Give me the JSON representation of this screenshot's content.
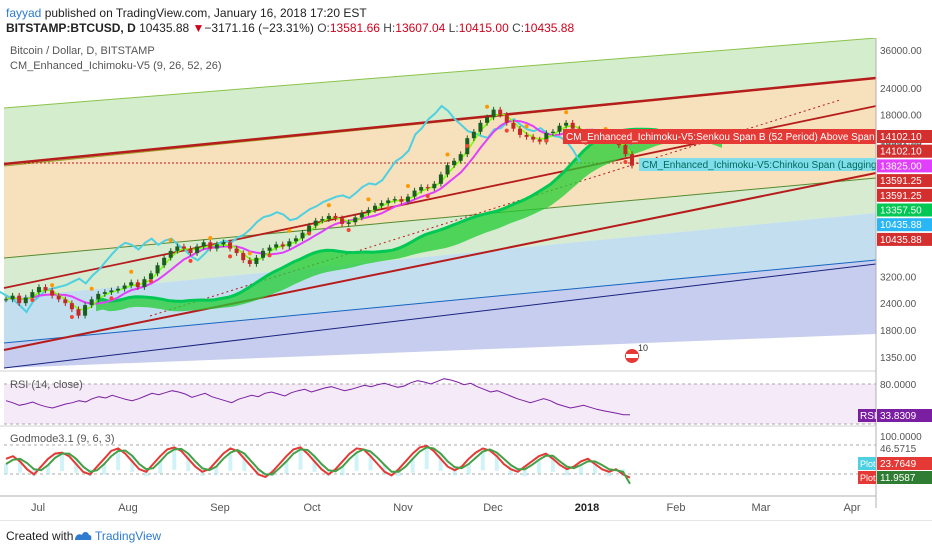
{
  "header": {
    "author": "fayyad",
    "published_text": "published on TradingView.com, January 16, 2018 17:20 EST",
    "symbol": "BITSTAMP:BTCUSD, D",
    "last": "10435.88",
    "change_arrow": "▼",
    "change": "−3171.16 (−23.31%)",
    "open_label": "O:",
    "open": "13581.66",
    "high_label": "H:",
    "high": "13607.04",
    "low_label": "L:",
    "low": "10415.00",
    "close_label": "C:",
    "close": "10435.88"
  },
  "footer": {
    "created_with": "Created with",
    "brand": "TradingView"
  },
  "colors": {
    "bull": "#26a69a",
    "bear": "#ef5350",
    "accent": "#2e7bcf",
    "rsi": "#7b1fa2",
    "cloud": "#22cc33",
    "trend": "#b71c1c"
  },
  "chart_data": [
    {
      "type": "candlestick",
      "title": "Bitcoin / Dollar, D, BITSTAMP",
      "indicator": "CM_Enhanced_Ichimoku-V5 (9, 26, 52, 26)",
      "y_scale": "log",
      "ylim": [
        1200,
        40000
      ],
      "y_ticks": [
        "36000.00",
        "24000.00",
        "18000.00",
        "14102.10",
        "13825.00",
        "13591.25",
        "13357.50",
        "10435.88",
        "3200.00",
        "2400.00",
        "1800.00",
        "1350.00"
      ],
      "x_ticks": [
        "Jul",
        "Aug",
        "Sep",
        "Oct",
        "Nov",
        "Dec",
        "2018",
        "Feb",
        "Mar",
        "Apr"
      ],
      "price_labels": [
        {
          "text": "14102.10",
          "value": 14102.1,
          "color": "#d32f2f"
        },
        {
          "text": "14102.10",
          "value": 14102.1,
          "color": "#d32f2f"
        },
        {
          "text": "13825.00",
          "value": 13825,
          "color": "#e040fb"
        },
        {
          "text": "13591.25",
          "value": 13591.25,
          "color": "#d32f2f"
        },
        {
          "text": "13591.25",
          "value": 13591.25,
          "color": "#d32f2f"
        },
        {
          "text": "13357.50",
          "value": 13357.5,
          "color": "#00c853"
        },
        {
          "text": "10435.88",
          "value": 10435.88,
          "color": "#29b6f6"
        },
        {
          "text": "10435.88",
          "value": 10435.88,
          "color": "#d32f2f"
        }
      ],
      "annotations": [
        {
          "text": "CM_Enhanced_Ichimoku-V5:Senkou Span B (52 Period) Above Span A Cloud",
          "color": "#d32f2f"
        },
        {
          "text": "CM_Enhanced_Ichimoku-V5:Chinkou Span (Lagging Line)",
          "color": "#4dd0e1"
        }
      ],
      "series": [
        {
          "values": [
            2500,
            2600,
            2400,
            2550,
            2700,
            2850,
            2750,
            2600,
            2500,
            2400,
            2250,
            2100,
            2350,
            2500,
            2650,
            2700,
            2750,
            2800,
            2900,
            3000,
            2850,
            3100,
            3300,
            3600,
            3900,
            4200,
            4400,
            4300,
            4100,
            4400,
            4600,
            4300,
            4500,
            4600,
            4300,
            4100,
            3800,
            3650,
            3900,
            4200,
            4350,
            4500,
            4400,
            4650,
            4800,
            5100,
            5500,
            5800,
            5900,
            6100,
            5950,
            5600,
            5700,
            6000,
            6300,
            6500,
            6800,
            7000,
            7200,
            7300,
            7100,
            7500,
            8000,
            8300,
            8200,
            8600,
            9500,
            10500,
            11000,
            11800,
            14000,
            15000,
            16500,
            17500,
            19000,
            18000,
            16500,
            15500,
            14500,
            14200,
            13800,
            13500,
            14800,
            15000,
            16000,
            16500,
            15500,
            14800,
            14500,
            15000,
            14200,
            13800,
            13600,
            13000,
            11800,
            10436
          ]
        }
      ]
    },
    {
      "type": "line",
      "title": "RSI (14, close)",
      "ylim": [
        0,
        100
      ],
      "y_ticks": [
        "80.0000"
      ],
      "value_label": "33.8309",
      "tag": "RSI",
      "series": [
        {
          "values": [
            55,
            52,
            48,
            50,
            53,
            49,
            46,
            44,
            47,
            50,
            52,
            55,
            53,
            58,
            61,
            59,
            63,
            60,
            57,
            55,
            58,
            62,
            66,
            64,
            67,
            70,
            68,
            65,
            60,
            63,
            66,
            61,
            58,
            55,
            52,
            57,
            60,
            63,
            61,
            66,
            68,
            65,
            62,
            67,
            70,
            72,
            68,
            71,
            74,
            76,
            73,
            70,
            72,
            75,
            78,
            76,
            79,
            81,
            78,
            75,
            77,
            82,
            85,
            83,
            80,
            84,
            88,
            86,
            83,
            79,
            81,
            76,
            72,
            68,
            70,
            66,
            62,
            58,
            55,
            52,
            55,
            58,
            55,
            50,
            47,
            44,
            46,
            48,
            45,
            42,
            40,
            38,
            36,
            34,
            33.83
          ]
        }
      ]
    },
    {
      "type": "line",
      "title": "Godmode3.1 (9, 6, 3)",
      "ylim": [
        0,
        100
      ],
      "y_ticks": [
        "100.0000",
        "46.5715"
      ],
      "value_labels": [
        "23.7649",
        "11.9587"
      ],
      "tags": [
        "Plot",
        "Plot"
      ],
      "series": [
        {
          "values": [
            60,
            65,
            55,
            40,
            30,
            45,
            60,
            70,
            72,
            65,
            50,
            35,
            30,
            45,
            60,
            75,
            80,
            70,
            55,
            40,
            35,
            50,
            65,
            78,
            82,
            75,
            60,
            45,
            35,
            40,
            55,
            70,
            80,
            75,
            60,
            45,
            30,
            25,
            35,
            50,
            65,
            78,
            82,
            70,
            55,
            40,
            30,
            40,
            55,
            70,
            80,
            78,
            65,
            50,
            35,
            28,
            40,
            55,
            70,
            82,
            85,
            75,
            60,
            45,
            38,
            45,
            60,
            72,
            80,
            76,
            65,
            50,
            40,
            35,
            45,
            55,
            65,
            70,
            60,
            48,
            40,
            45,
            55,
            60,
            50,
            40,
            35,
            40,
            30,
            23.76
          ]
        },
        {
          "values": [
            50,
            58,
            60,
            52,
            40,
            38,
            48,
            62,
            70,
            70,
            60,
            45,
            35,
            38,
            50,
            65,
            75,
            76,
            66,
            50,
            40,
            42,
            55,
            70,
            78,
            79,
            70,
            55,
            42,
            38,
            45,
            60,
            72,
            77,
            70,
            55,
            40,
            30,
            30,
            42,
            55,
            70,
            78,
            77,
            65,
            50,
            38,
            36,
            45,
            60,
            72,
            78,
            74,
            62,
            48,
            35,
            35,
            45,
            60,
            74,
            82,
            80,
            70,
            55,
            44,
            42,
            50,
            62,
            74,
            78,
            72,
            60,
            48,
            40,
            40,
            48,
            58,
            66,
            66,
            55,
            45,
            42,
            48,
            55,
            55,
            48,
            40,
            38,
            35,
            11.96
          ]
        }
      ]
    }
  ]
}
